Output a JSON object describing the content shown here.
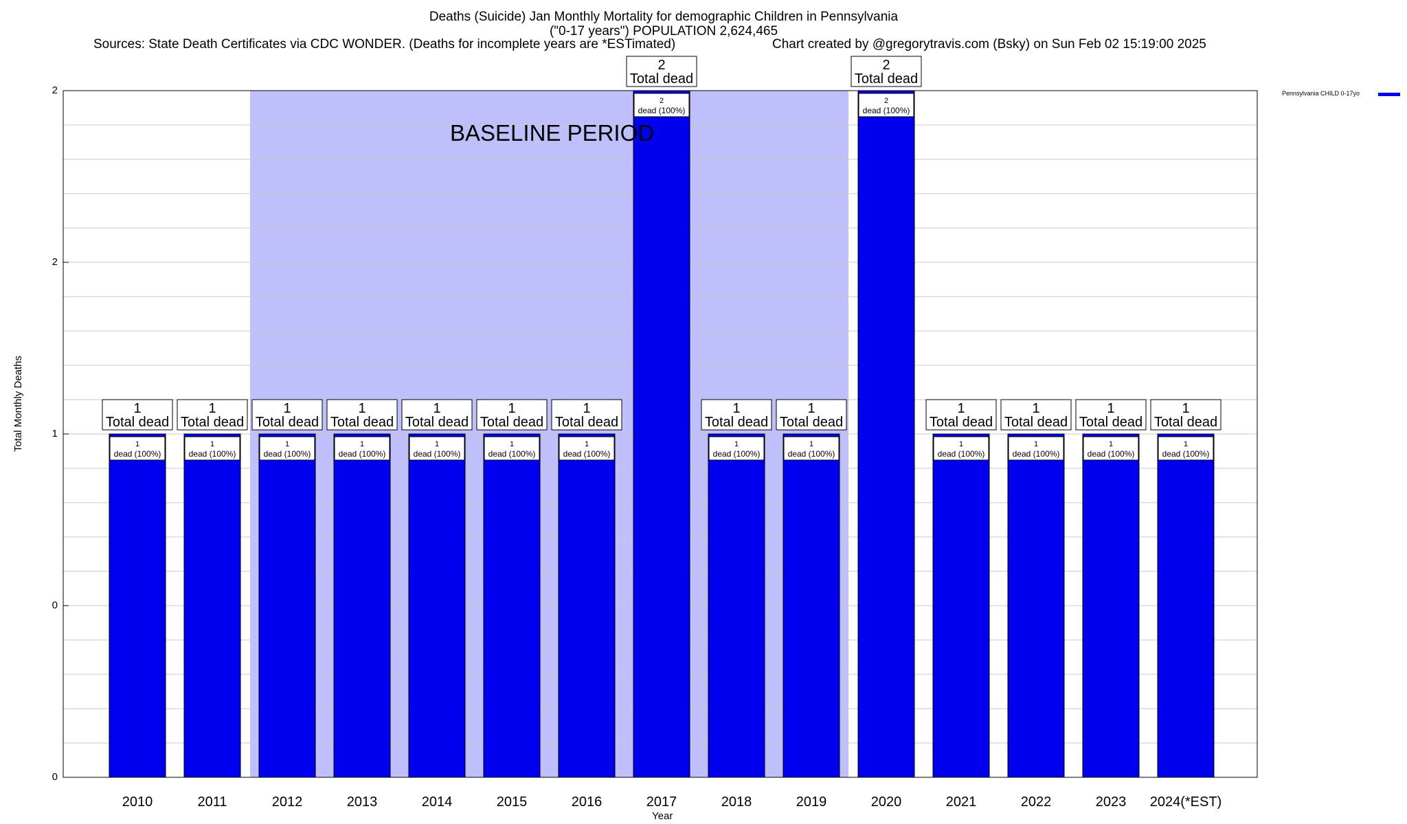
{
  "title_line1": "Deaths (Suicide) Jan Monthly Mortality for demographic Children in Pennsylvania",
  "title_line2": "(\"0-17 years\") POPULATION 2,624,465",
  "sources": "Sources: State Death Certificates via CDC WONDER. (Deaths for incomplete years are *ESTimated)",
  "credit": "Chart created by @gregorytravis.com (Bsky) on Sun Feb 02 15:19:00 2025",
  "legend_label": "Pennsylvania CHILD 0-17yo",
  "baseline_label": "BASELINE PERIOD",
  "colors": {
    "bar": "#0000ee",
    "baseline_band": "#bfbffb",
    "grid": "#c8c8c8"
  },
  "chart_data": {
    "type": "bar",
    "title": "Deaths (Suicide) Jan Monthly Mortality for demographic Children in Pennsylvania",
    "xlabel": "Year",
    "ylabel": "Total Monthly Deaths",
    "categories": [
      "2010",
      "2011",
      "2012",
      "2013",
      "2014",
      "2015",
      "2016",
      "2017",
      "2018",
      "2019",
      "2020",
      "2021",
      "2022",
      "2023",
      "2024(*EST)"
    ],
    "series": [
      {
        "name": "Pennsylvania CHILD 0-17yo",
        "values": [
          1,
          1,
          1,
          1,
          1,
          1,
          1,
          2,
          1,
          1,
          2,
          1,
          1,
          1,
          1
        ]
      }
    ],
    "ylim": [
      0,
      2
    ],
    "ytick_labels": [
      "0",
      "0",
      "1",
      "2",
      "2"
    ],
    "baseline_period": [
      "2012",
      "2019"
    ],
    "top_label_suffix": "Total dead",
    "inner_label_suffix": "dead (100%)",
    "grid": true,
    "legend_position": "top-right"
  }
}
